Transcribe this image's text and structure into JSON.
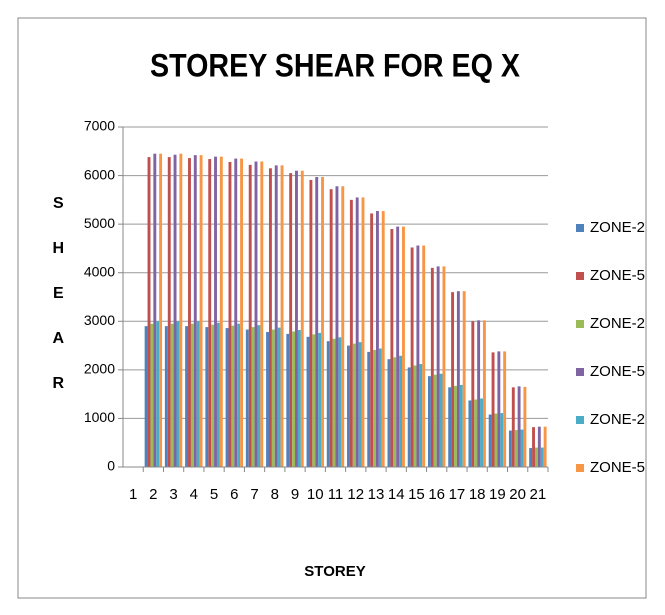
{
  "chart_data": {
    "type": "bar",
    "title": "STOREY SHEAR FOR EQ X",
    "x_label": "STOREY",
    "y_label": "SHEAR",
    "categories": [
      "1",
      "2",
      "3",
      "4",
      "5",
      "6",
      "7",
      "8",
      "9",
      "10",
      "11",
      "12",
      "13",
      "14",
      "15",
      "16",
      "17",
      "18",
      "19",
      "20",
      "21"
    ],
    "series": [
      {
        "name": "ZONE-2",
        "color": "#4f81bd",
        "values": [
          null,
          2900,
          2900,
          2900,
          2880,
          2860,
          2830,
          2780,
          2740,
          2680,
          2590,
          2500,
          2370,
          2220,
          2050,
          1870,
          1640,
          1370,
          1080,
          750,
          390
        ]
      },
      {
        "name": "ZONE-5",
        "color": "#c0504d",
        "values": [
          null,
          6380,
          6380,
          6360,
          6340,
          6280,
          6220,
          6150,
          6050,
          5910,
          5720,
          5500,
          5220,
          4900,
          4520,
          4100,
          3600,
          3000,
          2360,
          1640,
          820
        ]
      },
      {
        "name": "ZONE-2",
        "color": "#9bbb59",
        "values": [
          null,
          2950,
          2950,
          2950,
          2930,
          2910,
          2880,
          2830,
          2790,
          2730,
          2640,
          2540,
          2410,
          2260,
          2090,
          1900,
          1670,
          1390,
          1100,
          760,
          400
        ]
      },
      {
        "name": "ZONE-5",
        "color": "#8064a2",
        "values": [
          null,
          6450,
          6430,
          6420,
          6390,
          6350,
          6290,
          6210,
          6100,
          5970,
          5780,
          5550,
          5270,
          4950,
          4560,
          4130,
          3620,
          3020,
          2380,
          1660,
          830
        ]
      },
      {
        "name": "ZONE-2",
        "color": "#4bacc6",
        "values": [
          null,
          3000,
          3000,
          3000,
          2970,
          2950,
          2920,
          2870,
          2820,
          2760,
          2670,
          2570,
          2440,
          2290,
          2120,
          1920,
          1690,
          1410,
          1110,
          770,
          400
        ]
      },
      {
        "name": "ZONE-5",
        "color": "#f79646",
        "values": [
          null,
          6450,
          6450,
          6420,
          6390,
          6350,
          6290,
          6210,
          6100,
          5970,
          5780,
          5550,
          5270,
          4950,
          4560,
          4130,
          3620,
          3020,
          2380,
          1650,
          830
        ]
      }
    ],
    "ylim": [
      0,
      7000
    ],
    "yticks": [
      0,
      1000,
      2000,
      3000,
      4000,
      5000,
      6000,
      7000
    ],
    "grid": true,
    "legend": "right"
  }
}
